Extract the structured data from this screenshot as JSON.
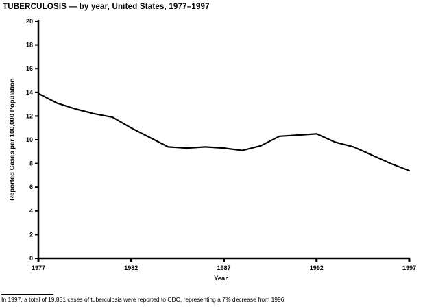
{
  "title": "TUBERCULOSIS — by year, United States, 1977–1997",
  "footnote": "In 1997, a total of 19,851 cases of tuberculosis were reported to CDC, representing a 7% decrease from 1996.",
  "colors": {
    "line": "#000000",
    "axis": "#000000",
    "text": "#000000",
    "background": "#ffffff"
  },
  "chart_data": {
    "type": "line",
    "title": "TUBERCULOSIS — by year, United States, 1977–1997",
    "xlabel": "Year",
    "ylabel": "Reported Cases per 100,000 Population",
    "x": [
      1977,
      1978,
      1979,
      1980,
      1981,
      1982,
      1983,
      1984,
      1985,
      1986,
      1987,
      1988,
      1989,
      1990,
      1991,
      1992,
      1993,
      1994,
      1995,
      1996,
      1997
    ],
    "values": [
      13.9,
      13.1,
      12.6,
      12.2,
      11.9,
      11.0,
      10.2,
      9.4,
      9.3,
      9.4,
      9.3,
      9.1,
      9.5,
      10.3,
      10.4,
      10.5,
      9.8,
      9.4,
      8.7,
      8.0,
      7.4
    ],
    "xlim": [
      1977,
      1997
    ],
    "ylim": [
      0,
      20
    ],
    "x_ticks": [
      1977,
      1982,
      1987,
      1992,
      1997
    ],
    "y_tick_step": 2,
    "grid": false,
    "legend": null,
    "line_color": "#000000"
  }
}
